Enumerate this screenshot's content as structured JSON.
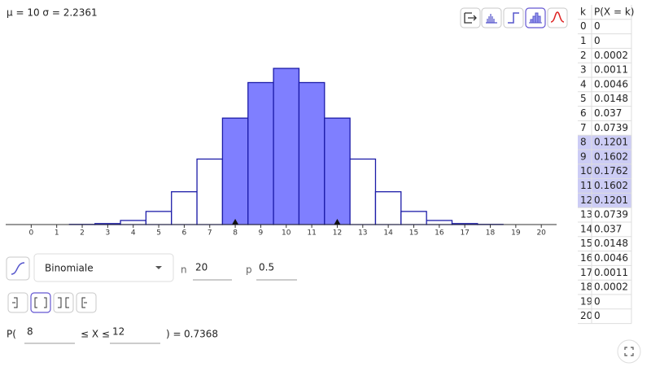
{
  "stats": "μ = 10 σ = 2.2361",
  "chart_data": {
    "type": "bar",
    "x": [
      0,
      1,
      2,
      3,
      4,
      5,
      6,
      7,
      8,
      9,
      10,
      11,
      12,
      13,
      14,
      15,
      16,
      17,
      18,
      19,
      20
    ],
    "values": [
      0,
      0,
      0.0002,
      0.0011,
      0.0046,
      0.0148,
      0.037,
      0.0739,
      0.1201,
      0.1602,
      0.1762,
      0.1602,
      0.1201,
      0.0739,
      0.037,
      0.0148,
      0.0046,
      0.0011,
      0.0002,
      0,
      0
    ],
    "xlim": [
      -1,
      20.6
    ],
    "xticks": [
      0,
      1,
      2,
      3,
      4,
      5,
      6,
      7,
      8,
      9,
      10,
      11,
      12,
      13,
      14,
      15,
      16,
      17,
      18,
      19,
      20
    ],
    "ylim": [
      0,
      0.235
    ],
    "color": "#7f7fff",
    "edge_color": "#1c1ca8"
  },
  "table": {
    "header": [
      "k",
      "P(X = k)"
    ],
    "highlight_color": "#ccccf5"
  },
  "controls": {
    "distribution": "Binomiale",
    "n_label": "n",
    "n": 20,
    "p_label": "p",
    "p": 0.5
  },
  "probability": {
    "prefix": "P(",
    "lower": 8,
    "middle": "≤ X ≤",
    "upper": 12,
    "suffix": ") =",
    "result": 0.7368
  }
}
